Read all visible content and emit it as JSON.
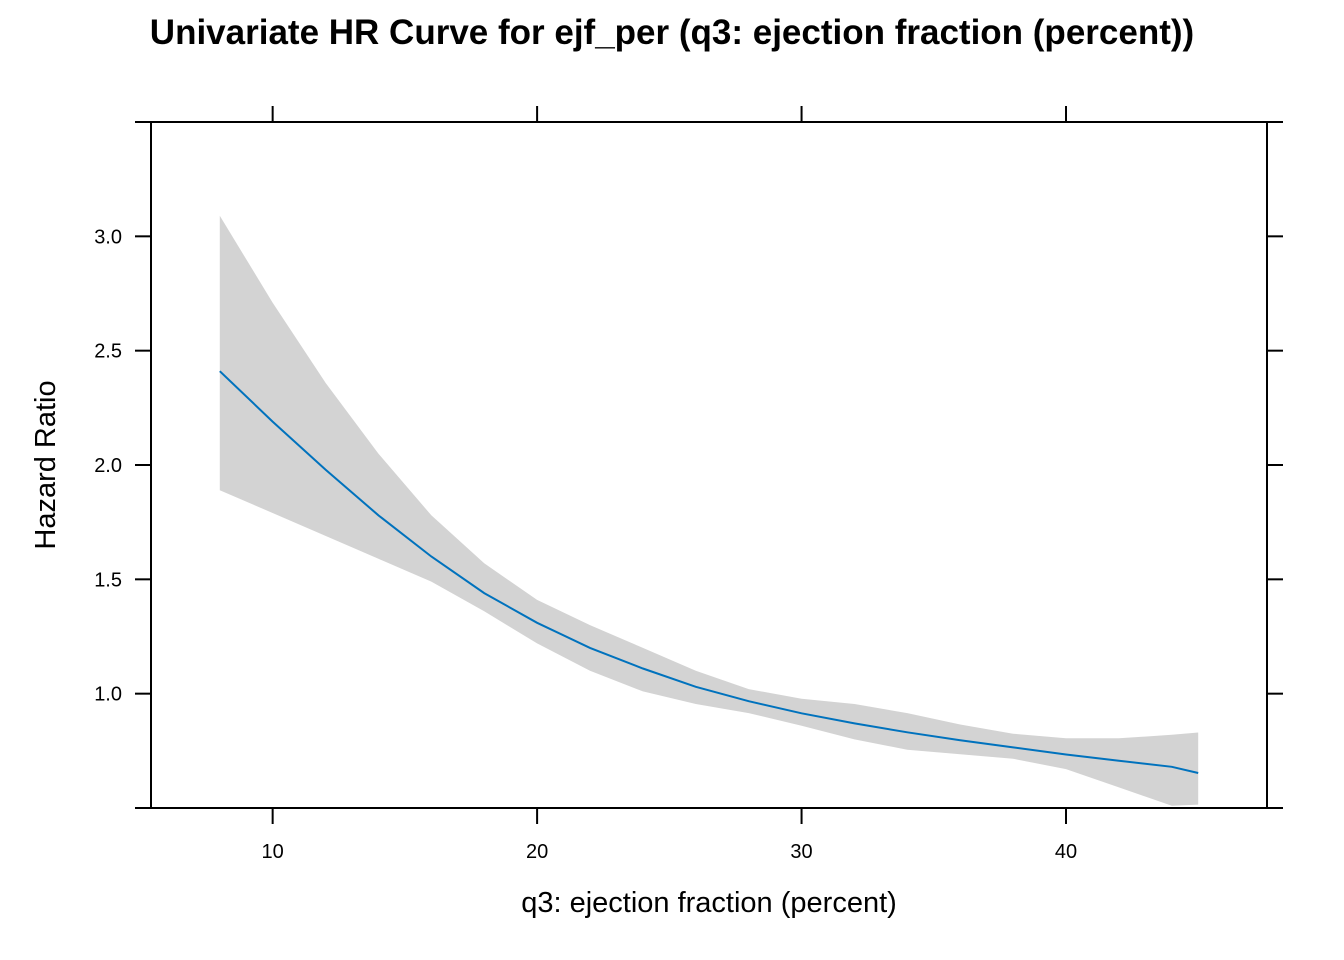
{
  "chart_data": {
    "type": "line",
    "title": "Univariate HR Curve for ejf_per (q3: ejection fraction (percent))",
    "xlabel": "q3: ejection fraction (percent)",
    "ylabel": "Hazard Ratio",
    "xlim": [
      5.4,
      47.6
    ],
    "ylim": [
      0.5,
      3.5
    ],
    "x_ticks": [
      10,
      20,
      30,
      40
    ],
    "x_tick_labels": [
      "10",
      "20",
      "30",
      "40"
    ],
    "y_ticks": [
      1.0,
      1.5,
      2.0,
      2.5,
      3.0
    ],
    "y_tick_labels": [
      "1.0",
      "1.5",
      "2.0",
      "2.5",
      "3.0"
    ],
    "grid": false,
    "legend": "none",
    "line_color": "#0072BD",
    "band_color": "#d3d3d3",
    "series": [
      {
        "x": [
          8,
          10,
          12,
          14,
          16,
          18,
          20,
          22,
          24,
          26,
          28,
          30,
          32,
          34,
          36,
          38,
          40,
          42,
          44,
          45
        ],
        "hr": [
          2.41,
          2.19,
          1.98,
          1.78,
          1.6,
          1.44,
          1.31,
          1.2,
          1.11,
          1.03,
          0.967,
          0.914,
          0.87,
          0.831,
          0.796,
          0.765,
          0.734,
          0.707,
          0.68,
          0.653
        ],
        "lower": [
          1.89,
          1.79,
          1.69,
          1.59,
          1.49,
          1.36,
          1.22,
          1.1,
          1.01,
          0.955,
          0.915,
          0.86,
          0.8,
          0.755,
          0.735,
          0.715,
          0.67,
          0.59,
          0.51,
          0.515
        ],
        "upper": [
          3.09,
          2.71,
          2.36,
          2.05,
          1.78,
          1.57,
          1.41,
          1.3,
          1.2,
          1.1,
          1.02,
          0.978,
          0.955,
          0.915,
          0.865,
          0.825,
          0.805,
          0.805,
          0.82,
          0.83
        ]
      }
    ]
  }
}
